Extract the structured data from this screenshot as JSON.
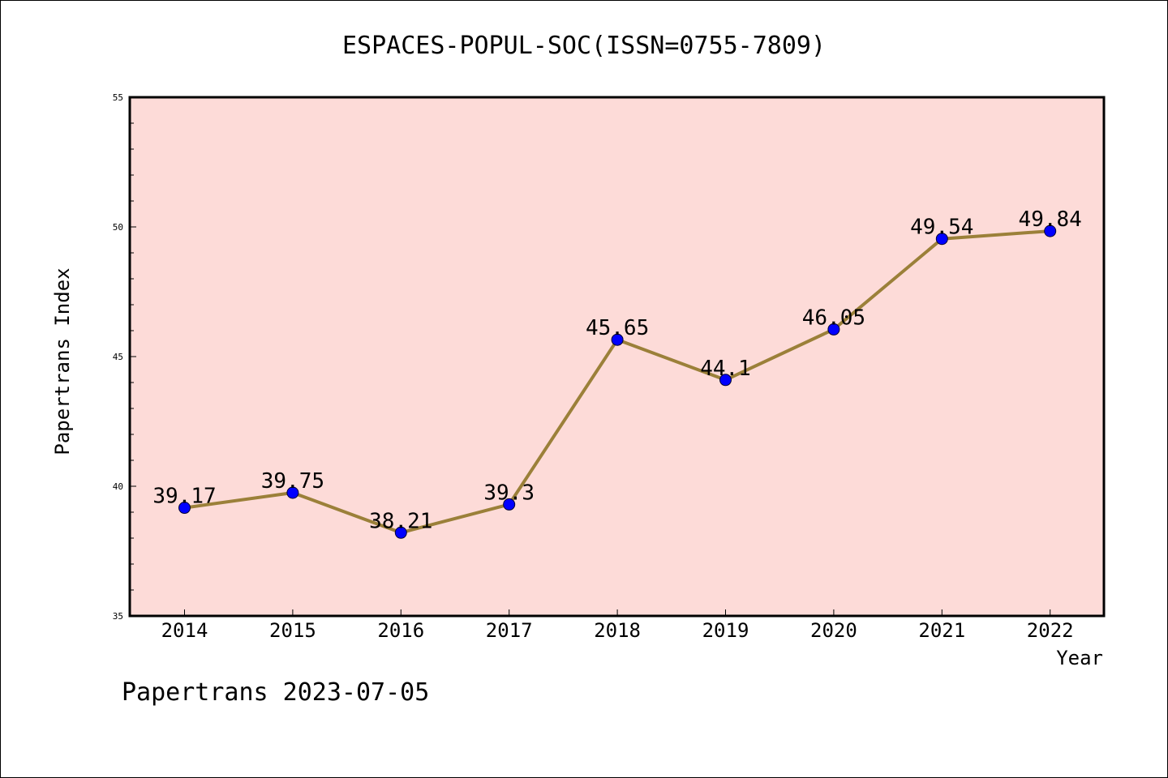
{
  "chart_data": {
    "type": "line",
    "title": "ESPACES-POPUL-SOC(ISSN=0755-7809)",
    "xlabel": "Year",
    "ylabel": "Papertrans Index",
    "categories": [
      "2014",
      "2015",
      "2016",
      "2017",
      "2018",
      "2019",
      "2020",
      "2021",
      "2022"
    ],
    "series": [
      {
        "values": [
          39.17,
          39.75,
          38.21,
          39.3,
          45.65,
          44.1,
          46.05,
          49.54,
          49.84
        ],
        "labels": [
          "39.17",
          "39.75",
          "38.21",
          "39.3",
          "45.65",
          "44.1",
          "46.05",
          "49.54",
          "49.84"
        ]
      }
    ],
    "ylim": [
      35,
      55
    ],
    "yticks": [
      "35",
      "40",
      "45",
      "50",
      "55"
    ],
    "grid": false,
    "colors": {
      "plot_background": "#fddbd8",
      "line": "#9b8039",
      "marker": "#0000ff"
    }
  },
  "footer": "Papertrans 2023-07-05"
}
